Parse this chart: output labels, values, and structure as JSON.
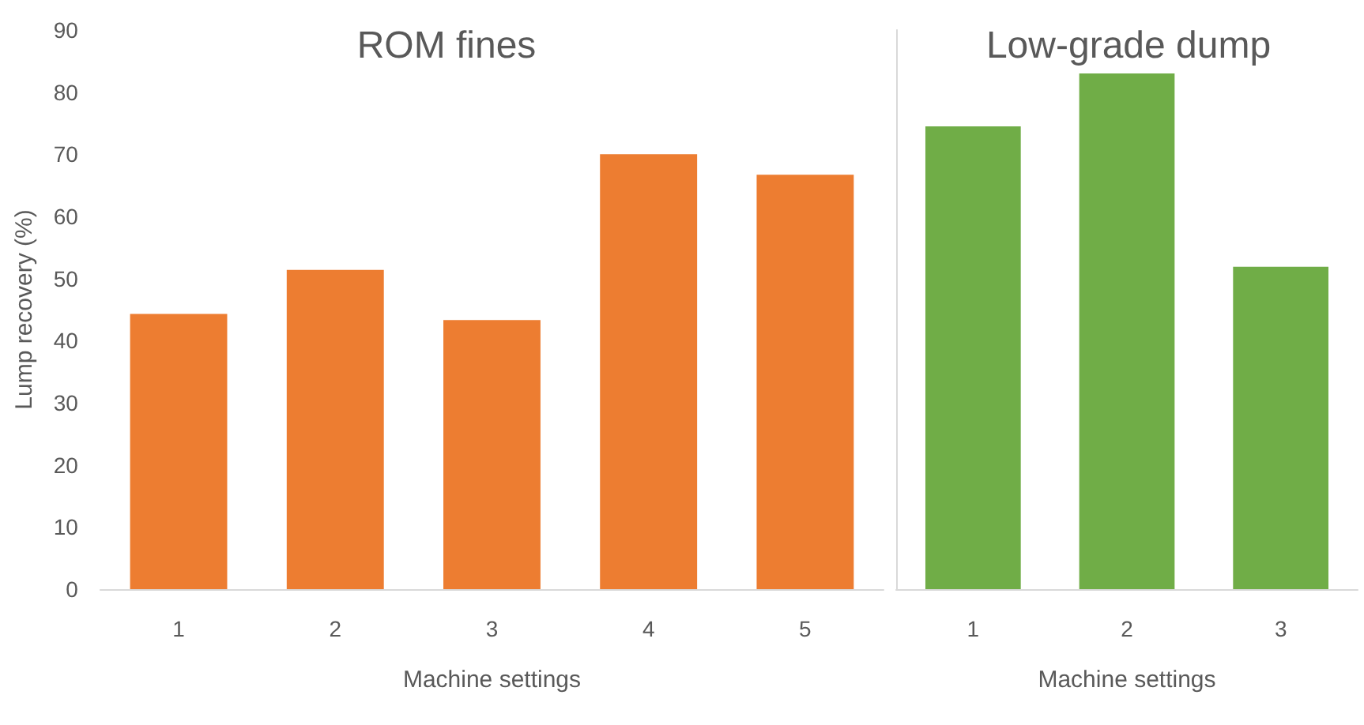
{
  "chart_data": [
    {
      "type": "bar",
      "title": "ROM fines",
      "xlabel": "Machine settings",
      "ylabel": "Lump recovery (%)",
      "categories": [
        "1",
        "2",
        "3",
        "4",
        "5"
      ],
      "values": [
        44.3,
        51.4,
        43.3,
        70,
        66.7
      ],
      "color": "#ed7d31",
      "ylim": [
        0,
        90
      ],
      "yticks": [
        0,
        10,
        20,
        30,
        40,
        50,
        60,
        70,
        80,
        90
      ],
      "grid": false
    },
    {
      "type": "bar",
      "title": "Low-grade dump",
      "xlabel": "Machine settings",
      "categories": [
        "1",
        "2",
        "3"
      ],
      "values": [
        74.5,
        83,
        51.9
      ],
      "color": "#70ad47",
      "ylim": [
        0,
        90
      ],
      "yticks": [
        0,
        10,
        20,
        30,
        40,
        50,
        60,
        70,
        80,
        90
      ],
      "grid": false,
      "tick_labels": "x"
    }
  ]
}
